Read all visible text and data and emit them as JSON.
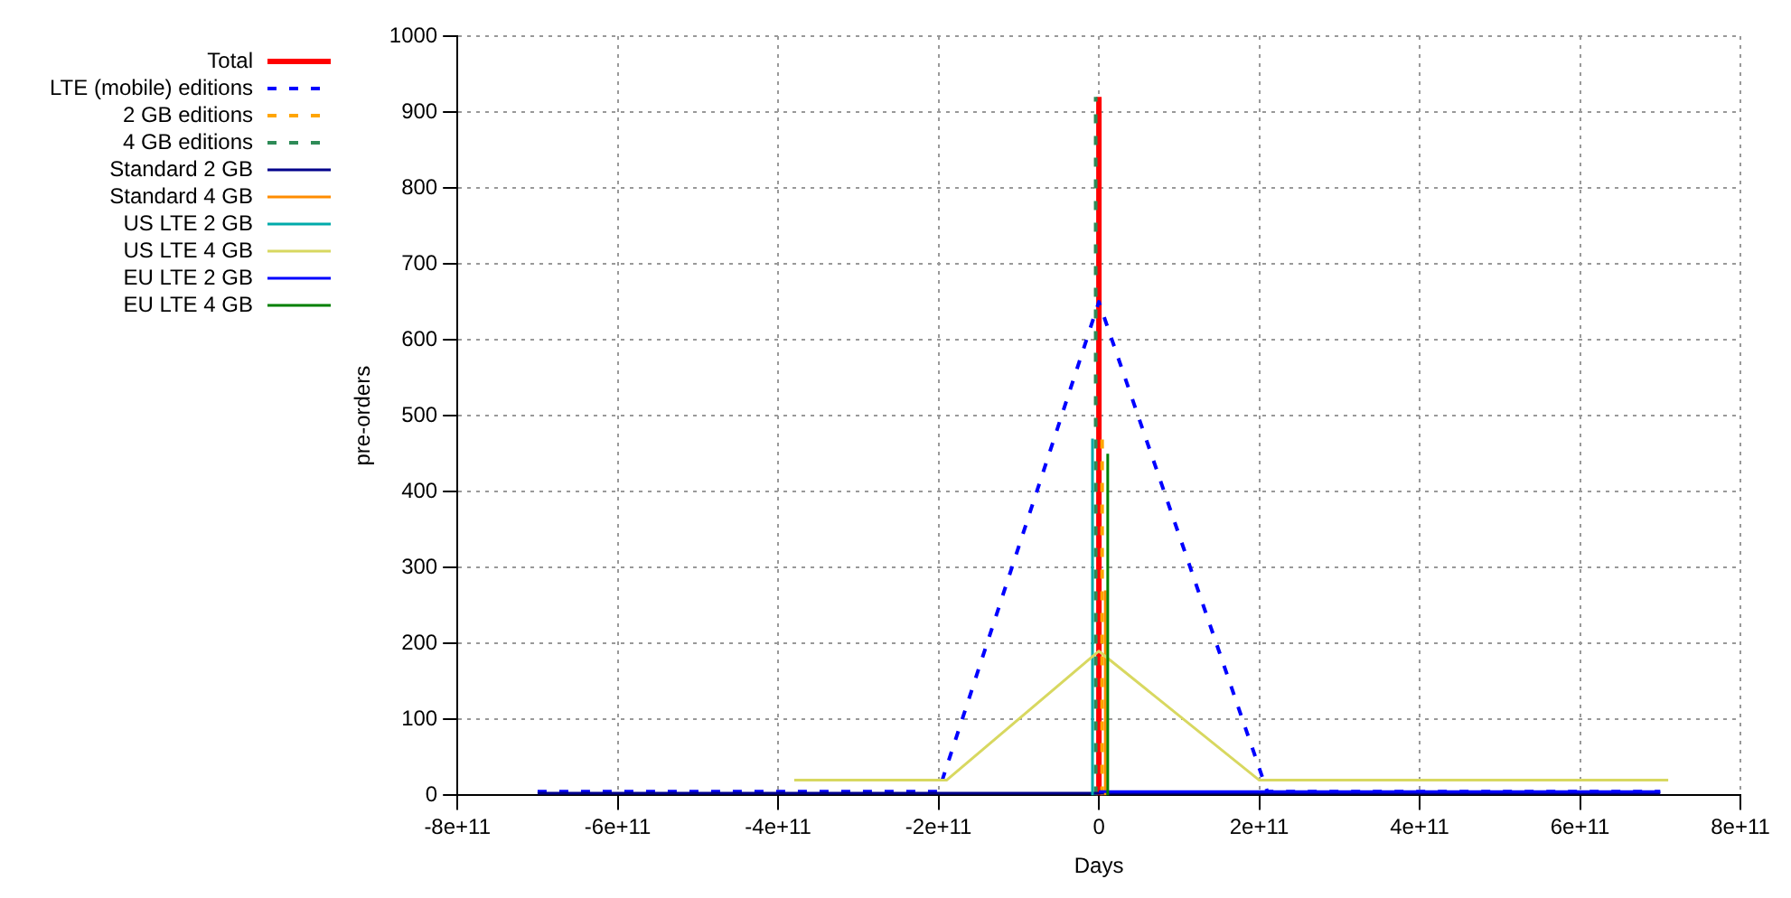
{
  "chart_data": {
    "type": "line",
    "xlabel": "Days",
    "ylabel": "pre-orders",
    "xlim": [
      -800000000000,
      800000000000
    ],
    "xticks": [
      {
        "value": -800000000000,
        "label": "-8e+11"
      },
      {
        "value": -600000000000,
        "label": "-6e+11"
      },
      {
        "value": -400000000000,
        "label": "-4e+11"
      },
      {
        "value": -200000000000,
        "label": "-2e+11"
      },
      0,
      {
        "value": 200000000000,
        "label": "2e+11"
      },
      {
        "value": 400000000000,
        "label": "4e+11"
      },
      {
        "value": 600000000000,
        "label": "6e+11"
      },
      {
        "value": 800000000000,
        "label": "8e+11"
      }
    ],
    "ylim": [
      0,
      1000
    ],
    "yticks": [
      0,
      100,
      200,
      300,
      400,
      500,
      600,
      700,
      800,
      900,
      1000
    ],
    "grid": true,
    "legend": "left",
    "marker": "none",
    "series": [
      {
        "name": "Total",
        "color": "#ff0000",
        "x": [
          0,
          0
        ],
        "values": [
          0,
          920
        ]
      },
      {
        "name": "LTE (mobile) editions",
        "color": "#0000ff",
        "line_style": "dashed",
        "x": [
          -700000000000,
          -200000000000,
          0,
          210000000000,
          700000000000
        ],
        "values": [
          5,
          5,
          650,
          5,
          5
        ]
      },
      {
        "name": "2 GB editions",
        "color": "#ffa500",
        "line_style": "dashed",
        "x": [
          4000000000,
          4000000000
        ],
        "values": [
          0,
          470
        ]
      },
      {
        "name": "4 GB editions",
        "color": "#2e8b57",
        "line_style": "dashed",
        "x": [
          -4000000000,
          -4000000000
        ],
        "values": [
          0,
          920
        ]
      },
      {
        "name": "Standard 2 GB",
        "color": "#00008b",
        "x": [
          -700000000000,
          700000000000
        ],
        "values": [
          3,
          3
        ]
      },
      {
        "name": "Standard 4 GB",
        "color": "#ff8c00",
        "x": [
          8000000000,
          8000000000
        ],
        "values": [
          0,
          270
        ]
      },
      {
        "name": "US LTE 2 GB",
        "color": "#00aaaa",
        "x": [
          -8000000000,
          -8000000000
        ],
        "values": [
          0,
          470
        ]
      },
      {
        "name": "US LTE 4 GB",
        "color": "#d8d860",
        "x": [
          -380000000000,
          -190000000000,
          0,
          200000000000,
          710000000000
        ],
        "values": [
          20,
          20,
          190,
          20,
          20
        ]
      },
      {
        "name": "EU LTE 2 GB",
        "color": "#0000ff",
        "x": [
          0,
          700000000000
        ],
        "values": [
          5,
          5
        ]
      },
      {
        "name": "EU LTE 4 GB",
        "color": "#008000",
        "x": [
          11000000000,
          11000000000
        ],
        "values": [
          0,
          450
        ]
      }
    ]
  }
}
